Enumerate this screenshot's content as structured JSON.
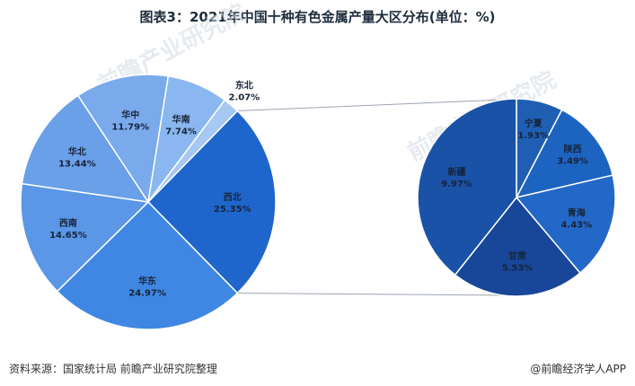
{
  "chart_data": {
    "type": "pie",
    "title": "图表3：2021年中国十种有色金属产量大区分布(单位：%)",
    "unit": "%",
    "slices": [
      {
        "name": "西北",
        "value": 25.35,
        "color": "#1f66cc"
      },
      {
        "name": "华东",
        "value": 24.97,
        "color": "#3f87e2"
      },
      {
        "name": "西南",
        "value": 14.65,
        "color": "#5b97e6"
      },
      {
        "name": "华北",
        "value": 13.44,
        "color": "#6aa0e8"
      },
      {
        "name": "华中",
        "value": 11.79,
        "color": "#7aaaec"
      },
      {
        "name": "华南",
        "value": 7.74,
        "color": "#8ab7ef"
      },
      {
        "name": "东北",
        "value": 2.07,
        "color": "#a6c8f2"
      }
    ],
    "breakdown_of": "西北",
    "breakdown": [
      {
        "name": "宁夏",
        "value": 1.93,
        "color": "#1f5fb3"
      },
      {
        "name": "陕西",
        "value": 3.49,
        "color": "#1d63c0"
      },
      {
        "name": "青海",
        "value": 4.43,
        "color": "#2368c6"
      },
      {
        "name": "甘肃",
        "value": 5.53,
        "color": "#18479a"
      },
      {
        "name": "新疆",
        "value": 9.97,
        "color": "#1a52a8"
      }
    ]
  },
  "watermark": {
    "brand": "前瞻产业研究院"
  },
  "footer": {
    "source": "资料来源：国家统计局 前瞻产业研究院整理",
    "brand": "@前瞻经济学人APP"
  }
}
